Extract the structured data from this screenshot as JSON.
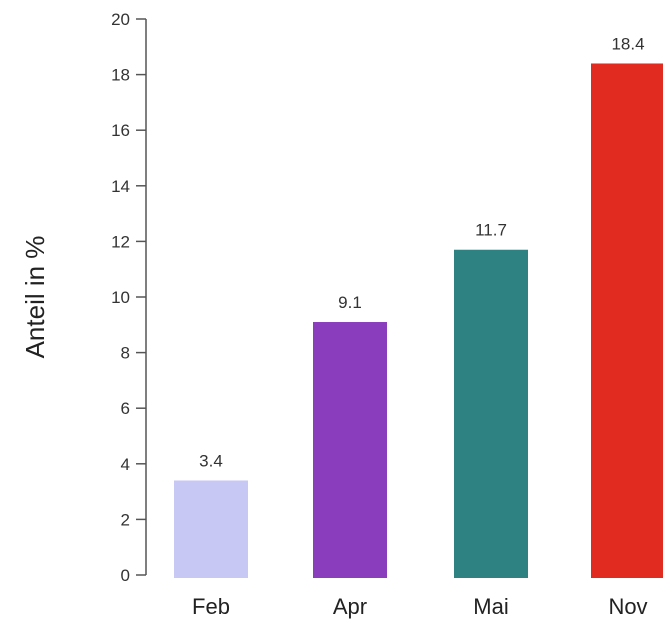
{
  "chart_data": {
    "type": "bar",
    "categories": [
      "Feb",
      "Apr",
      "Mai",
      "Nov"
    ],
    "values": [
      3.4,
      9.1,
      11.7,
      18.4
    ],
    "value_labels": [
      "3.4",
      "9.1",
      "11.7",
      "18.4"
    ],
    "colors": [
      "#c8c8f5",
      "#8a3dbd",
      "#2f8282",
      "#e12b20"
    ],
    "ylabel": "Anteil in %",
    "xlabel": "",
    "ylim": [
      0,
      20
    ],
    "yticks": [
      0,
      2,
      4,
      6,
      8,
      10,
      12,
      14,
      16,
      18,
      20
    ],
    "grid": false,
    "legend": "none"
  }
}
